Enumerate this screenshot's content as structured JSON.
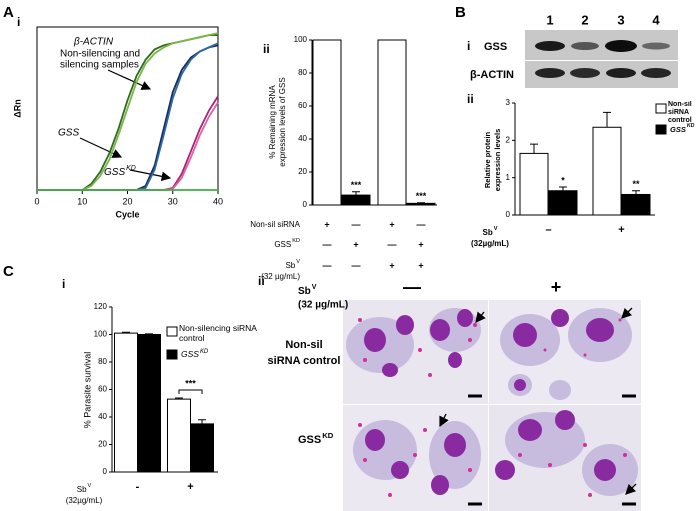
{
  "panel_labels": [
    "A",
    "i",
    "ii",
    "B",
    "i",
    "ii",
    "C",
    "i",
    "ii"
  ],
  "blot": {
    "lanes": [
      "1",
      "2",
      "3",
      "4"
    ],
    "rows": [
      "GSS",
      "β-ACTIN"
    ]
  },
  "micrographs": {
    "treatment": {
      "text": "Sb",
      "sup": "V",
      "line2": "(32 µg/mL)"
    },
    "columns": [
      "—",
      "+"
    ],
    "rows": [
      {
        "lines": [
          "Non-sil",
          "siRNA control"
        ]
      },
      {
        "text": "GSS",
        "sup": "KD"
      }
    ]
  },
  "chart_data": [
    {
      "type": "line",
      "x": [
        0,
        5,
        10,
        12,
        14,
        16,
        18,
        20,
        22,
        24,
        26,
        28,
        30,
        32,
        34,
        36,
        38,
        40
      ],
      "series": [
        {
          "color": "#2e6b1e",
          "values": [
            0,
            0,
            0,
            0.3,
            0.9,
            1.8,
            3.0,
            4.4,
            5.6,
            6.4,
            6.9,
            7.1,
            7.2,
            7.3,
            7.4,
            7.5,
            7.6,
            7.6
          ]
        },
        {
          "color": "#7ab648",
          "values": [
            0,
            0,
            0,
            0.2,
            0.7,
            1.5,
            2.7,
            4.0,
            5.3,
            6.2,
            6.7,
            7.0,
            7.2,
            7.3,
            7.4,
            7.5,
            7.6,
            7.7
          ]
        },
        {
          "color": "#1a2a5a",
          "values": [
            0,
            0,
            0,
            0,
            0,
            0,
            0,
            0,
            0,
            0.2,
            1.2,
            3.0,
            4.8,
            5.9,
            6.5,
            6.8,
            7.0,
            7.1
          ]
        },
        {
          "color": "#2a6aa0",
          "values": [
            0,
            0,
            0,
            0,
            0,
            0,
            0,
            0,
            0,
            0.1,
            1.0,
            2.7,
            4.5,
            5.7,
            6.4,
            6.8,
            7.0,
            7.2
          ]
        },
        {
          "color": "#b0207a",
          "values": [
            0,
            0,
            0,
            0,
            0,
            0,
            0,
            0,
            0,
            0,
            0,
            0,
            0.1,
            0.8,
            1.9,
            3.0,
            3.9,
            4.6
          ]
        },
        {
          "color": "#e060a0",
          "values": [
            0,
            0,
            0,
            0,
            0,
            0,
            0,
            0,
            0,
            0,
            0,
            0,
            0.05,
            0.6,
            1.6,
            2.7,
            3.6,
            4.3
          ]
        },
        {
          "color": "#3cb043",
          "values": [
            0,
            0,
            0,
            0,
            0,
            0,
            0,
            0,
            0,
            0,
            0,
            0,
            0,
            0,
            0,
            0,
            0,
            0
          ]
        }
      ],
      "xlim": [
        0,
        40
      ],
      "xticks": [
        0,
        10,
        20,
        30,
        40
      ],
      "ylim": [
        0,
        8
      ],
      "x_label": "Cycle",
      "y_label": "ΔRn",
      "annotations": [
        "β-ACTIN",
        "Non-silencing and",
        "silencing samples",
        "GSS",
        {
          "text": "GSS",
          "sup": "KD"
        }
      ]
    },
    {
      "type": "bar",
      "categories": [
        null,
        null,
        null,
        null
      ],
      "values": [
        100,
        6,
        100,
        1
      ],
      "errors": [
        0,
        2,
        0,
        0.4
      ],
      "colors": [
        "#ffffff",
        "#000000",
        "#ffffff",
        "#000000"
      ],
      "significance": [
        null,
        "***",
        null,
        "***"
      ],
      "ylim": [
        0,
        100
      ],
      "yticks": [
        0,
        20,
        40,
        60,
        80,
        100
      ],
      "y_label": {
        "lines": [
          "% Remaining mRNA",
          "expression levels of GSS"
        ]
      },
      "conditions": [
        {
          "label": "Non-sil siRNA",
          "signs": [
            "+",
            "—",
            "+",
            "—"
          ]
        },
        {
          "label": {
            "text": "GSS",
            "sup": "KD"
          },
          "signs": [
            "—",
            "+",
            "—",
            "+"
          ]
        },
        {
          "label": {
            "text": "Sb",
            "sup": "V",
            "line2": "(32 µg/mL)"
          },
          "signs": [
            "—",
            "—",
            "+",
            "+"
          ]
        }
      ]
    },
    {
      "type": "bar",
      "categories": [
        "–",
        "+"
      ],
      "series": [
        {
          "name": "Non-sil siRNA control",
          "color": "#ffffff",
          "values": [
            1.65,
            2.35
          ],
          "errors": [
            0.25,
            0.4
          ],
          "significance": [
            null,
            null
          ]
        },
        {
          "name": {
            "text": "GSS",
            "sup": "KD"
          },
          "color": "#000000",
          "values": [
            0.65,
            0.55
          ],
          "errors": [
            0.1,
            0.1
          ],
          "significance": [
            "*",
            "**"
          ]
        }
      ],
      "ylim": [
        0,
        3
      ],
      "yticks": [
        0,
        1,
        2,
        3
      ],
      "y_label": {
        "lines": [
          "Relative protein",
          "expression levels"
        ]
      },
      "x_label": {
        "text": "Sb",
        "sup": "V",
        "line2": "(32µg/mL)"
      }
    },
    {
      "type": "bar",
      "categories": [
        "-",
        "+"
      ],
      "series": [
        {
          "name": "Non-silencing siRNA control",
          "color": "#ffffff",
          "values": [
            101,
            53
          ],
          "errors": [
            0.6,
            0.8
          ]
        },
        {
          "name": {
            "text": "GSS",
            "sup": "KD"
          },
          "color": "#000000",
          "values": [
            100,
            35
          ],
          "errors": [
            0.5,
            3
          ]
        }
      ],
      "significance": [
        null,
        "***"
      ],
      "ylim": [
        0,
        120
      ],
      "yticks": [
        0,
        20,
        40,
        60,
        80,
        100,
        120
      ],
      "y_label": "% Parasite survival",
      "x_label": {
        "text": "Sb",
        "sup": "V",
        "line2": "(32µg/mL)"
      }
    }
  ]
}
